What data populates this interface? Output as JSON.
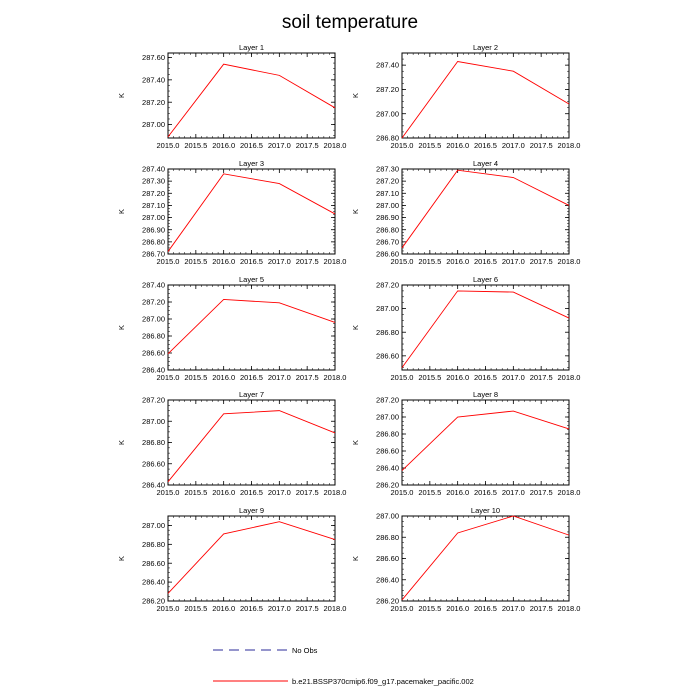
{
  "title": "soil temperature",
  "legend": {
    "obs_label": "No Obs",
    "model_label": "b.e21.BSSP370cmip6.f09_g17.pacemaker_pacific.002",
    "obs_color": "#2b2b9a",
    "model_color": "#ff0000"
  },
  "chart_data": [
    {
      "type": "line",
      "title": "Layer 1",
      "ylabel": "K",
      "x": [
        2015.0,
        2016.0,
        2017.0,
        2018.0
      ],
      "xlim": [
        2015.0,
        2018.0
      ],
      "xticks": [
        2015.0,
        2015.5,
        2016.0,
        2016.5,
        2017.0,
        2017.5,
        2018.0
      ],
      "ylim": [
        286.88,
        287.64
      ],
      "yticks": [
        287.0,
        287.2,
        287.4,
        287.6
      ],
      "series": [
        {
          "values": [
            286.89,
            287.54,
            287.44,
            287.15
          ],
          "color": "#ff0000"
        }
      ]
    },
    {
      "type": "line",
      "title": "Layer 2",
      "ylabel": "K",
      "x": [
        2015.0,
        2016.0,
        2017.0,
        2018.0
      ],
      "xlim": [
        2015.0,
        2018.0
      ],
      "xticks": [
        2015.0,
        2015.5,
        2016.0,
        2016.5,
        2017.0,
        2017.5,
        2018.0
      ],
      "ylim": [
        286.8,
        287.5
      ],
      "yticks": [
        286.8,
        287.0,
        287.2,
        287.4
      ],
      "series": [
        {
          "values": [
            286.8,
            287.43,
            287.35,
            287.08
          ],
          "color": "#ff0000"
        }
      ]
    },
    {
      "type": "line",
      "title": "Layer 3",
      "ylabel": "K",
      "x": [
        2015.0,
        2016.0,
        2017.0,
        2018.0
      ],
      "xlim": [
        2015.0,
        2018.0
      ],
      "xticks": [
        2015.0,
        2015.5,
        2016.0,
        2016.5,
        2017.0,
        2017.5,
        2018.0
      ],
      "ylim": [
        286.7,
        287.4
      ],
      "yticks": [
        286.7,
        286.8,
        286.9,
        287.0,
        287.1,
        287.2,
        287.3,
        287.4
      ],
      "series": [
        {
          "values": [
            286.72,
            287.36,
            287.28,
            287.03
          ],
          "color": "#ff0000"
        }
      ]
    },
    {
      "type": "line",
      "title": "Layer 4",
      "ylabel": "K",
      "x": [
        2015.0,
        2016.0,
        2017.0,
        2018.0
      ],
      "xlim": [
        2015.0,
        2018.0
      ],
      "xticks": [
        2015.0,
        2015.5,
        2016.0,
        2016.5,
        2017.0,
        2017.5,
        2018.0
      ],
      "ylim": [
        286.6,
        287.3
      ],
      "yticks": [
        286.6,
        286.7,
        286.8,
        286.9,
        287.0,
        287.1,
        287.2,
        287.3
      ],
      "series": [
        {
          "values": [
            286.65,
            287.29,
            287.23,
            287.0
          ],
          "color": "#ff0000"
        }
      ]
    },
    {
      "type": "line",
      "title": "Layer 5",
      "ylabel": "K",
      "x": [
        2015.0,
        2016.0,
        2017.0,
        2018.0
      ],
      "xlim": [
        2015.0,
        2018.0
      ],
      "xticks": [
        2015.0,
        2015.5,
        2016.0,
        2016.5,
        2017.0,
        2017.5,
        2018.0
      ],
      "ylim": [
        286.4,
        287.4
      ],
      "yticks": [
        286.4,
        286.6,
        286.8,
        287.0,
        287.2,
        287.4
      ],
      "series": [
        {
          "values": [
            286.59,
            287.23,
            287.19,
            286.96
          ],
          "color": "#ff0000"
        }
      ]
    },
    {
      "type": "line",
      "title": "Layer 6",
      "ylabel": "K",
      "x": [
        2015.0,
        2016.0,
        2017.0,
        2018.0
      ],
      "xlim": [
        2015.0,
        2018.0
      ],
      "xticks": [
        2015.0,
        2015.5,
        2016.0,
        2016.5,
        2017.0,
        2017.5,
        2018.0
      ],
      "ylim": [
        286.48,
        287.2
      ],
      "yticks": [
        286.6,
        286.8,
        287.0,
        287.2
      ],
      "series": [
        {
          "values": [
            286.5,
            287.15,
            287.14,
            286.92
          ],
          "color": "#ff0000"
        }
      ]
    },
    {
      "type": "line",
      "title": "Layer 7",
      "ylabel": "K",
      "x": [
        2015.0,
        2016.0,
        2017.0,
        2018.0
      ],
      "xlim": [
        2015.0,
        2018.0
      ],
      "xticks": [
        2015.0,
        2015.5,
        2016.0,
        2016.5,
        2017.0,
        2017.5,
        2018.0
      ],
      "ylim": [
        286.4,
        287.2
      ],
      "yticks": [
        286.4,
        286.6,
        286.8,
        287.0,
        287.2
      ],
      "series": [
        {
          "values": [
            286.43,
            287.07,
            287.1,
            286.89
          ],
          "color": "#ff0000"
        }
      ]
    },
    {
      "type": "line",
      "title": "Layer 8",
      "ylabel": "K",
      "x": [
        2015.0,
        2016.0,
        2017.0,
        2018.0
      ],
      "xlim": [
        2015.0,
        2018.0
      ],
      "xticks": [
        2015.0,
        2015.5,
        2016.0,
        2016.5,
        2017.0,
        2017.5,
        2018.0
      ],
      "ylim": [
        286.2,
        287.2
      ],
      "yticks": [
        286.2,
        286.4,
        286.6,
        286.8,
        287.0,
        287.2
      ],
      "series": [
        {
          "values": [
            286.37,
            287.0,
            287.07,
            286.86
          ],
          "color": "#ff0000"
        }
      ]
    },
    {
      "type": "line",
      "title": "Layer 9",
      "ylabel": "K",
      "x": [
        2015.0,
        2016.0,
        2017.0,
        2018.0
      ],
      "xlim": [
        2015.0,
        2018.0
      ],
      "xticks": [
        2015.0,
        2015.5,
        2016.0,
        2016.5,
        2017.0,
        2017.5,
        2018.0
      ],
      "ylim": [
        286.2,
        287.1
      ],
      "yticks": [
        286.2,
        286.4,
        286.6,
        286.8,
        287.0
      ],
      "series": [
        {
          "values": [
            286.28,
            286.91,
            287.04,
            286.85
          ],
          "color": "#ff0000"
        }
      ]
    },
    {
      "type": "line",
      "title": "Layer 10",
      "ylabel": "K",
      "x": [
        2015.0,
        2016.0,
        2017.0,
        2018.0
      ],
      "xlim": [
        2015.0,
        2018.0
      ],
      "xticks": [
        2015.0,
        2015.5,
        2016.0,
        2016.5,
        2017.0,
        2017.5,
        2018.0
      ],
      "ylim": [
        286.2,
        287.0
      ],
      "yticks": [
        286.2,
        286.4,
        286.6,
        286.8,
        287.0
      ],
      "series": [
        {
          "values": [
            286.21,
            286.84,
            287.0,
            286.82
          ],
          "color": "#ff0000"
        }
      ]
    }
  ]
}
